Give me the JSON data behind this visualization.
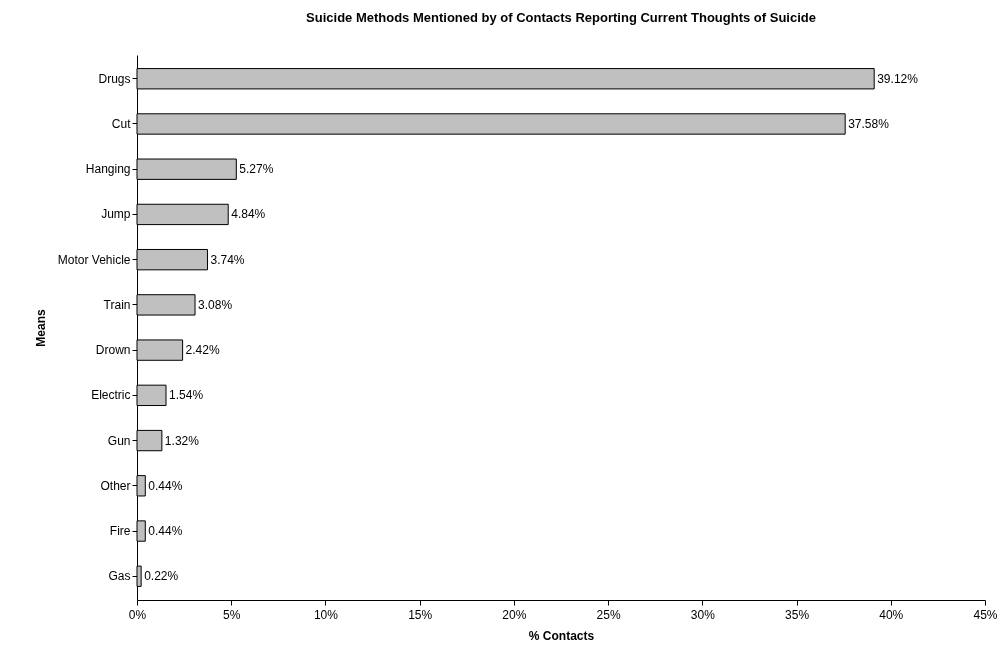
{
  "chart_data": {
    "type": "bar",
    "orientation": "horizontal",
    "title": "Suicide Methods Mentioned by of Contacts Reporting Current Thoughts of Suicide",
    "xlabel": "% Contacts",
    "ylabel": "Means",
    "categories": [
      "Drugs",
      "Cut",
      "Hanging",
      "Jump",
      "Motor Vehicle",
      "Train",
      "Drown",
      "Electric",
      "Gun",
      "Other",
      "Fire",
      "Gas"
    ],
    "values": [
      39.12,
      37.58,
      5.27,
      4.84,
      3.74,
      3.08,
      2.42,
      1.54,
      1.32,
      0.44,
      0.44,
      0.22
    ],
    "value_labels": [
      "39.12%",
      "37.58%",
      "5.27%",
      "4.84%",
      "3.74%",
      "3.08%",
      "2.42%",
      "1.54%",
      "1.32%",
      "0.44%",
      "0.44%",
      "0.22%"
    ],
    "color": "#c0c0c0",
    "xlim": [
      0,
      45
    ],
    "xticks": [
      {
        "value": 0,
        "label": "0%"
      },
      {
        "value": 5,
        "label": "5%"
      },
      {
        "value": 10,
        "label": "10%"
      },
      {
        "value": 15,
        "label": "15%"
      },
      {
        "value": 20,
        "label": "20%"
      },
      {
        "value": 25,
        "label": "25%"
      },
      {
        "value": 30,
        "label": "30%"
      },
      {
        "value": 35,
        "label": "35%"
      },
      {
        "value": 40,
        "label": "40%"
      },
      {
        "value": 45,
        "label": "45%"
      }
    ],
    "grid": false
  }
}
